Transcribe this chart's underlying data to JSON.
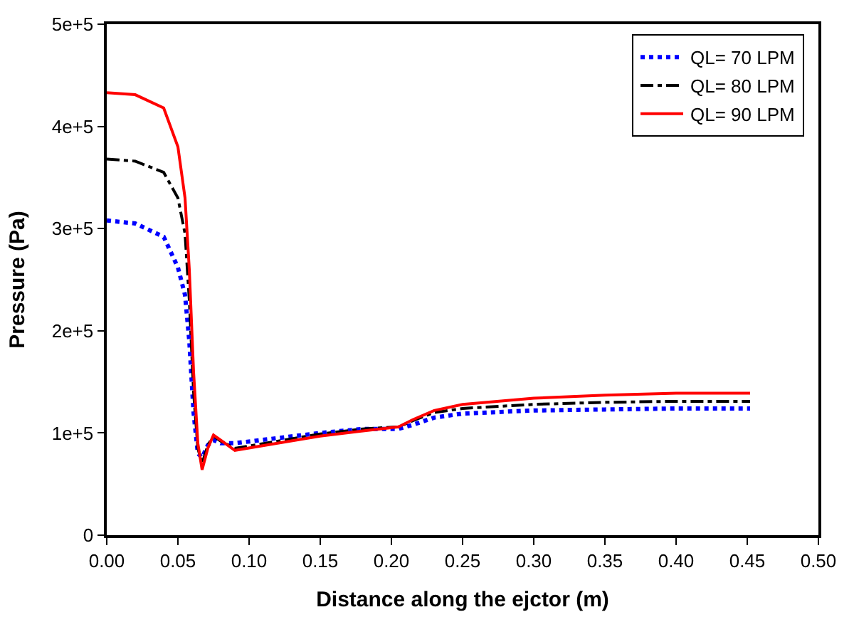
{
  "chart_data": {
    "type": "line",
    "xlabel": "Distance along the ejctor (m)",
    "ylabel": "Pressure (Pa)",
    "xlim": [
      0,
      0.5
    ],
    "xticks": [
      {
        "value": 0,
        "label": "0.00"
      },
      {
        "value": 0.05,
        "label": "0.05"
      },
      {
        "value": 0.1,
        "label": "0.10"
      },
      {
        "value": 0.15,
        "label": "0.15"
      },
      {
        "value": 0.2,
        "label": "0.20"
      },
      {
        "value": 0.25,
        "label": "0.25"
      },
      {
        "value": 0.3,
        "label": "0.30"
      },
      {
        "value": 0.35,
        "label": "0.35"
      },
      {
        "value": 0.4,
        "label": "0.40"
      },
      {
        "value": 0.45,
        "label": "0.45"
      },
      {
        "value": 0.5,
        "label": "0.50"
      }
    ],
    "ylim": [
      0,
      500000
    ],
    "yticks": [
      0,
      {
        "value": 100000,
        "label": "1e+5"
      },
      {
        "value": 200000,
        "label": "2e+5"
      },
      {
        "value": 300000,
        "label": "3e+5"
      },
      {
        "value": 400000,
        "label": "4e+5"
      },
      {
        "value": 500000,
        "label": "5e+5"
      }
    ],
    "legend": "top right",
    "marker": "none",
    "x": [
      0,
      0.02,
      0.04,
      0.05,
      0.055,
      0.058,
      0.061,
      0.064,
      0.067,
      0.071,
      0.075,
      0.08,
      0.09,
      0.12,
      0.15,
      0.18,
      0.205,
      0.215,
      0.23,
      0.25,
      0.3,
      0.35,
      0.4,
      0.452
    ],
    "series": [
      {
        "name": "QL= 70 LPM",
        "color": "#0000ff",
        "line_style": "dotted",
        "values": [
          308000,
          305000,
          292000,
          262000,
          235000,
          190000,
          120000,
          80000,
          76000,
          88000,
          93000,
          90000,
          90000,
          95000,
          100000,
          104000,
          104000,
          108000,
          115000,
          119000,
          122000,
          123000,
          124000,
          124000
        ]
      },
      {
        "name": "QL= 80 LPM",
        "color": "#000000",
        "line_style": "dashdot",
        "values": [
          368000,
          366000,
          355000,
          330000,
          295000,
          230000,
          140000,
          85000,
          70000,
          88000,
          97000,
          92000,
          85000,
          92000,
          99000,
          104000,
          106000,
          112000,
          120000,
          124000,
          128000,
          130000,
          131000,
          131000
        ]
      },
      {
        "name": "QL= 90 LPM",
        "color": "#ff0000",
        "line_style": "solid",
        "values": [
          433000,
          431000,
          418000,
          380000,
          330000,
          260000,
          160000,
          90000,
          64000,
          85000,
          98000,
          93000,
          83000,
          90000,
          97000,
          102000,
          106000,
          113000,
          122000,
          128000,
          134000,
          137000,
          139000,
          139000
        ]
      }
    ]
  }
}
